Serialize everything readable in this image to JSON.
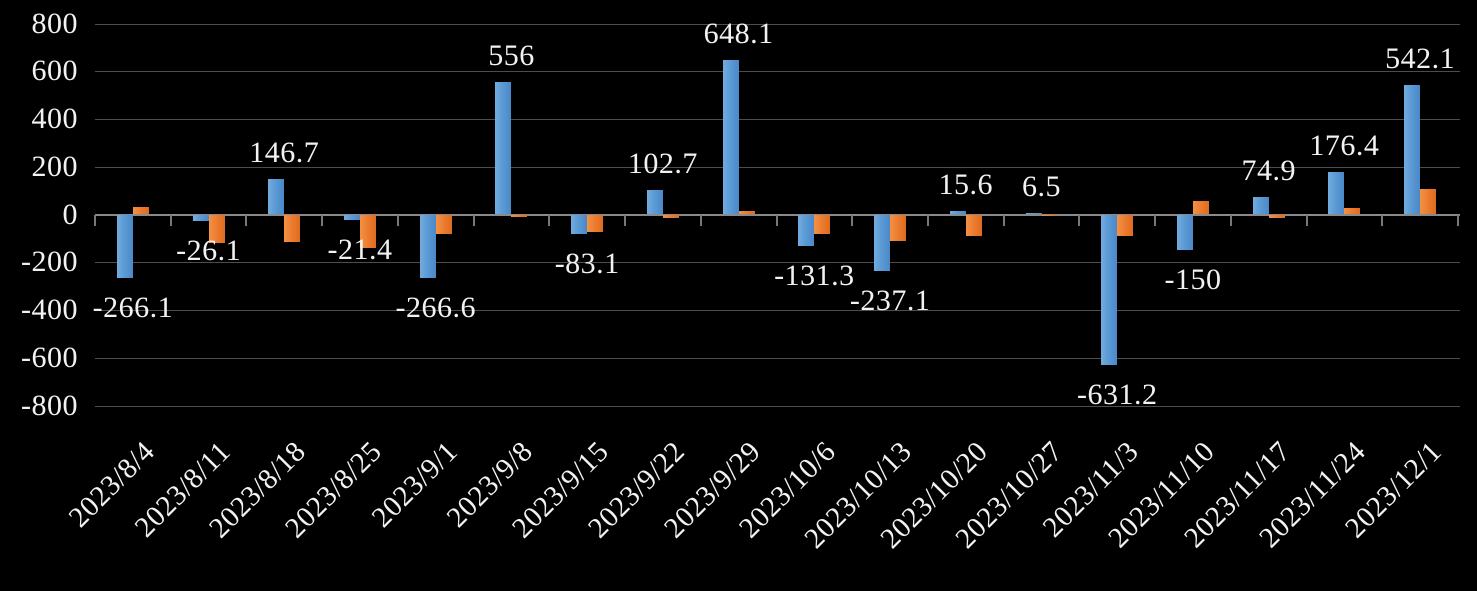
{
  "chart_data": {
    "type": "bar",
    "title": "",
    "xlabel": "",
    "ylabel": "",
    "ylim": [
      -800,
      800
    ],
    "grid": true,
    "legend": "none",
    "background_color": "#000000",
    "text_color": "#F2F2F2",
    "gridline_color": "#4D4D4D",
    "axis_color": "#8A8A8A",
    "categories": [
      "2023/8/4",
      "2023/8/11",
      "2023/8/18",
      "2023/8/25",
      "2023/9/1",
      "2023/9/8",
      "2023/9/15",
      "2023/9/22",
      "2023/9/29",
      "2023/10/6",
      "2023/10/13",
      "2023/10/20",
      "2023/10/27",
      "2023/11/3",
      "2023/11/10",
      "2023/11/17",
      "2023/11/24",
      "2023/12/1"
    ],
    "series": [
      {
        "name": "blue-series",
        "color": "#5B9BD5",
        "values": [
          -266.1,
          -26.1,
          146.7,
          -21.4,
          -266.6,
          556,
          -83.1,
          102.7,
          648.1,
          -131.3,
          -237.1,
          15.6,
          6.5,
          -631.2,
          -150,
          74.9,
          176.4,
          542.1
        ],
        "labels": [
          "-266.1",
          "-26.1",
          "146.7",
          "-21.4",
          "-266.6",
          "556",
          "-83.1",
          "102.7",
          "648.1",
          "-131.3",
          "-237.1",
          "15.6",
          "6.5",
          "-631.2",
          "-150",
          "74.9",
          "176.4",
          "542.1"
        ]
      },
      {
        "name": "orange-series",
        "color": "#ED7D31",
        "values": [
          30,
          -120,
          -115,
          -140,
          -80,
          -10,
          -75,
          -15,
          15,
          -80,
          -110,
          -90,
          -5,
          -90,
          58,
          -15,
          28,
          105
        ]
      }
    ],
    "y_ticks": [
      {
        "value": 800,
        "label": "800"
      },
      {
        "value": 600,
        "label": "600"
      },
      {
        "value": 400,
        "label": "400"
      },
      {
        "value": 200,
        "label": "200"
      },
      {
        "value": 0,
        "label": "0"
      },
      {
        "value": -200,
        "label": "-200"
      },
      {
        "value": -400,
        "label": "-400"
      },
      {
        "value": -600,
        "label": "-600"
      },
      {
        "value": -800,
        "label": "-800"
      }
    ]
  }
}
